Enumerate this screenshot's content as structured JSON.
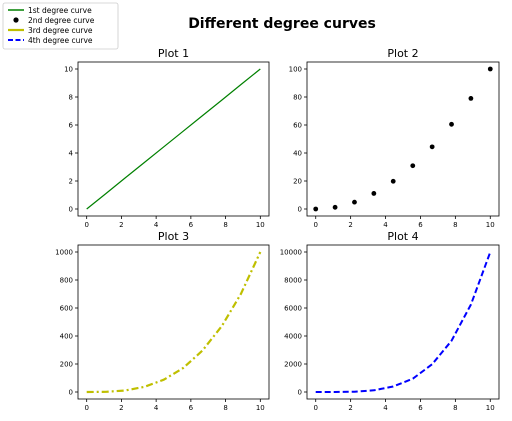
{
  "figure": {
    "suptitle": "Different degree curves"
  },
  "legend": {
    "placement": "top-left",
    "entries": [
      {
        "label": "1st degree curve",
        "color": "#008000",
        "style": "solid-line"
      },
      {
        "label": "2nd degree curve",
        "color": "#000000",
        "style": "marker-circle"
      },
      {
        "label": "3rd degree curve",
        "color": "#bfbf00",
        "style": "dash-dot-line"
      },
      {
        "label": "4th degree curve",
        "color": "#0000ff",
        "style": "dashed-line"
      }
    ]
  },
  "chart_data": [
    {
      "type": "line",
      "title": "Plot 1",
      "xlabel": "",
      "ylabel": "",
      "color": "#008000",
      "linestyle": "solid",
      "x": [
        0,
        1.11,
        2.22,
        3.33,
        4.44,
        5.56,
        6.67,
        7.78,
        8.89,
        10
      ],
      "y": [
        0,
        1.11,
        2.22,
        3.33,
        4.44,
        5.56,
        6.67,
        7.78,
        8.89,
        10
      ],
      "xlim": [
        -0.5,
        10.5
      ],
      "ylim": [
        -0.5,
        10.5
      ],
      "xticks": [
        0,
        2,
        4,
        6,
        8,
        10
      ],
      "yticks": [
        0,
        2,
        4,
        6,
        8,
        10
      ],
      "grid": false
    },
    {
      "type": "scatter",
      "title": "Plot 2",
      "xlabel": "",
      "ylabel": "",
      "color": "#000000",
      "x": [
        0,
        1.11,
        2.22,
        3.33,
        4.44,
        5.56,
        6.67,
        7.78,
        8.89,
        10
      ],
      "y": [
        0,
        1.2,
        4.9,
        11.1,
        19.8,
        30.9,
        44.4,
        60.5,
        79.0,
        100
      ],
      "xlim": [
        -0.5,
        10.5
      ],
      "ylim": [
        -5,
        105
      ],
      "xticks": [
        0,
        2,
        4,
        6,
        8,
        10
      ],
      "yticks": [
        0,
        20,
        40,
        60,
        80,
        100
      ],
      "grid": false
    },
    {
      "type": "line",
      "title": "Plot 3",
      "xlabel": "",
      "ylabel": "",
      "color": "#bfbf00",
      "linestyle": "dashdot",
      "x": [
        0,
        1.11,
        2.22,
        3.33,
        4.44,
        5.56,
        6.67,
        7.78,
        8.89,
        10
      ],
      "y": [
        0,
        1.4,
        11.0,
        37.0,
        87.8,
        171.5,
        296.3,
        470.5,
        702.3,
        1000
      ],
      "xlim": [
        -0.5,
        10.5
      ],
      "ylim": [
        -50,
        1050
      ],
      "xticks": [
        0,
        2,
        4,
        6,
        8,
        10
      ],
      "yticks": [
        0,
        200,
        400,
        600,
        800,
        1000
      ],
      "grid": false
    },
    {
      "type": "line",
      "title": "Plot 4",
      "xlabel": "",
      "ylabel": "",
      "color": "#0000ff",
      "linestyle": "dashed",
      "x": [
        0,
        1.11,
        2.22,
        3.33,
        4.44,
        5.56,
        6.67,
        7.78,
        8.89,
        10
      ],
      "y": [
        0,
        1.5,
        24.4,
        123.5,
        390.2,
        952.6,
        1975.3,
        3659.5,
        6242.9,
        10000
      ],
      "xlim": [
        -0.5,
        10.5
      ],
      "ylim": [
        -500,
        10500
      ],
      "xticks": [
        0,
        2,
        4,
        6,
        8,
        10
      ],
      "yticks": [
        0,
        2000,
        4000,
        6000,
        8000,
        10000
      ],
      "grid": false
    }
  ]
}
